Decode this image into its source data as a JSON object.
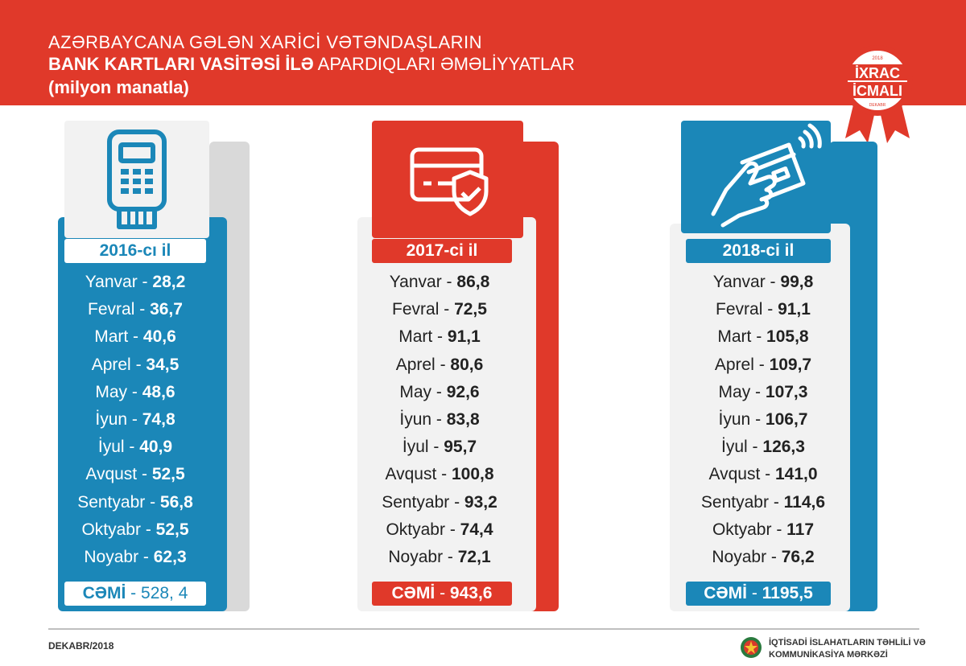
{
  "header": {
    "title_line1": "AZƏRBAYCANA GƏLƏN XARİCİ VƏTƏNDAŞLARIN",
    "title_line2_bold": "BANK KARTLARI VASİTƏSİ İLƏ",
    "title_line2_rest": "APARDIQLARI ƏMƏLİYYATLAR",
    "title_line3": "(milyon manatla)"
  },
  "badge": {
    "year": "2018",
    "line1": "İXRAC",
    "line2": "İCMALI",
    "month": "DEKABR"
  },
  "cards": [
    {
      "icon": "pos-terminal-icon",
      "year_label": "2016-cı il",
      "months": [
        {
          "name": "Yanvar",
          "value": "28,2"
        },
        {
          "name": "Fevral",
          "value": "36,7"
        },
        {
          "name": "Mart",
          "value": "40,6"
        },
        {
          "name": "Aprel",
          "value": "34,5"
        },
        {
          "name": "May",
          "value": "48,6"
        },
        {
          "name": "İyun",
          "value": "74,8"
        },
        {
          "name": "İyul",
          "value": "40,9"
        },
        {
          "name": "Avqust",
          "value": "52,5"
        },
        {
          "name": "Sentyabr",
          "value": "56,8"
        },
        {
          "name": "Oktyabr",
          "value": "52,5"
        },
        {
          "name": "Noyabr",
          "value": "62,3"
        }
      ],
      "total_label": "CƏMİ",
      "total_value": "528, 4"
    },
    {
      "icon": "secure-card-icon",
      "year_label": "2017-ci il",
      "months": [
        {
          "name": "Yanvar",
          "value": "86,8"
        },
        {
          "name": "Fevral",
          "value": "72,5"
        },
        {
          "name": "Mart",
          "value": "91,1"
        },
        {
          "name": "Aprel",
          "value": "80,6"
        },
        {
          "name": "May",
          "value": "92,6"
        },
        {
          "name": "İyun",
          "value": "83,8"
        },
        {
          "name": "İyul",
          "value": "95,7"
        },
        {
          "name": "Avqust",
          "value": "100,8"
        },
        {
          "name": "Sentyabr",
          "value": "93,2"
        },
        {
          "name": "Oktyabr",
          "value": "74,4"
        },
        {
          "name": "Noyabr",
          "value": "72,1"
        }
      ],
      "total_label": "CƏMİ",
      "total_value": "943,6"
    },
    {
      "icon": "contactless-card-icon",
      "year_label": "2018-ci il",
      "months": [
        {
          "name": "Yanvar",
          "value": "99,8"
        },
        {
          "name": "Fevral",
          "value": "91,1"
        },
        {
          "name": "Mart",
          "value": "105,8"
        },
        {
          "name": "Aprel",
          "value": "109,7"
        },
        {
          "name": "May",
          "value": "107,3"
        },
        {
          "name": "İyun",
          "value": "106,7"
        },
        {
          "name": "İyul",
          "value": "126,3"
        },
        {
          "name": "Avqust",
          "value": "141,0"
        },
        {
          "name": "Sentyabr",
          "value": "114,6"
        },
        {
          "name": "Oktyabr",
          "value": "117"
        },
        {
          "name": "Noyabr",
          "value": "76,2"
        }
      ],
      "total_label": "CƏMİ",
      "total_value": "1195,5"
    }
  ],
  "footer": {
    "date": "DEKABR/2018",
    "org_line1": "İQTİSADİ İSLAHATLARIN TƏHLİLİ VƏ",
    "org_line2": "KOMMUNİKASİYA MƏRKƏZİ"
  },
  "colors": {
    "red": "#e0392a",
    "blue": "#1b87b8",
    "gray": "#d9d9d9",
    "light": "#f2f2f2"
  }
}
